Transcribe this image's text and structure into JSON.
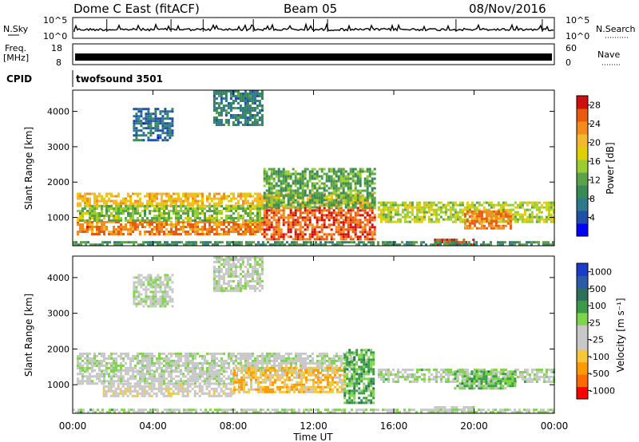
{
  "header": {
    "station": "Dome C East (fitACF)",
    "beam": "Beam 05",
    "date": "08/Nov/2016"
  },
  "top_panels": {
    "nsky_label": "N.Sky",
    "nsky_ticks_left": [
      "10^5",
      "10^0"
    ],
    "nsearch_label": "N.Search",
    "nsearch_ticks_right": [
      "10^5",
      "10^0"
    ],
    "freq_label_line1": "Freq.",
    "freq_label_line2": "[MHz]",
    "freq_ticks": [
      "18",
      "8"
    ],
    "nave_label": "Nave",
    "nave_ticks": [
      "60",
      "0"
    ],
    "cpid_label": "CPID",
    "cpid_value": "twofsound 3501"
  },
  "colors": {
    "power_scale": [
      "#0000ff",
      "#1f4fa6",
      "#2e7a8a",
      "#3a8a55",
      "#5aa34a",
      "#9acd32",
      "#e0d000",
      "#f7b733",
      "#f28c1e",
      "#e85a10",
      "#d01010"
    ],
    "velocity_scale": [
      "#ff0000",
      "#ff6a00",
      "#ff9a00",
      "#f7c63a",
      "#c8c8c8",
      "#c8c8c8",
      "#7ed44a",
      "#3a9a4a",
      "#2e6f5a",
      "#2a5aa8",
      "#1a3cc8"
    ]
  },
  "chart_data": [
    {
      "type": "heatmap",
      "quantity": "power",
      "ylabel": "Slant Range [km]",
      "xlabel": "",
      "ylim": [
        200,
        4600
      ],
      "yticks": [
        "1000",
        "2000",
        "3000",
        "4000"
      ],
      "xticks": [
        "00:00",
        "04:00",
        "08:00",
        "12:00",
        "16:00",
        "20:00",
        "00:00"
      ],
      "colorbar_label": "Power [dB]",
      "colorbar_ticks": [
        "4",
        "8",
        "12",
        "16",
        "20",
        "24",
        "28"
      ],
      "color_range": [
        0,
        30
      ],
      "regions": [
        {
          "t0": 0.2,
          "t1": 15.0,
          "r0": 1350,
          "r1": 1700,
          "value": 20
        },
        {
          "t0": 0.2,
          "t1": 9.5,
          "r0": 500,
          "r1": 900,
          "value": 24
        },
        {
          "t0": 0.2,
          "t1": 9.5,
          "r0": 900,
          "r1": 1350,
          "value": 14
        },
        {
          "t0": 9.5,
          "t1": 15.0,
          "r0": 400,
          "r1": 1300,
          "value": 26
        },
        {
          "t0": 9.5,
          "t1": 15.0,
          "r0": 1300,
          "r1": 2400,
          "value": 12
        },
        {
          "t0": 15.2,
          "t1": 24.0,
          "r0": 850,
          "r1": 1450,
          "value": 16
        },
        {
          "t0": 19.5,
          "t1": 21.8,
          "r0": 700,
          "r1": 1200,
          "value": 24
        },
        {
          "t0": 18.0,
          "t1": 20.0,
          "r0": 200,
          "r1": 400,
          "value": 28
        },
        {
          "t0": 7.0,
          "t1": 9.5,
          "r0": 3600,
          "r1": 4600,
          "value": 8
        },
        {
          "t0": 3.0,
          "t1": 5.0,
          "r0": 3200,
          "r1": 4100,
          "value": 6
        },
        {
          "t0": 0.0,
          "t1": 24.0,
          "r0": 200,
          "r1": 330,
          "value": 10
        }
      ]
    },
    {
      "type": "heatmap",
      "quantity": "velocity",
      "ylabel": "Slant Range [km]",
      "xlabel": "Time UT",
      "ylim": [
        200,
        4600
      ],
      "yticks": [
        "1000",
        "2000",
        "3000",
        "4000"
      ],
      "xticks": [
        "00:00",
        "04:00",
        "08:00",
        "12:00",
        "16:00",
        "20:00",
        "00:00"
      ],
      "colorbar_label": "Velocity [m s⁻¹]",
      "colorbar_ticks": [
        "1000",
        "500",
        "100",
        "25",
        "-25",
        "-100",
        "-500",
        "-1000"
      ],
      "color_range": [
        -1000,
        1000
      ],
      "regions": [
        {
          "t0": 0.2,
          "t1": 14.0,
          "r0": 1400,
          "r1": 1900,
          "value": 0
        },
        {
          "t0": 1.5,
          "t1": 8.0,
          "r0": 700,
          "r1": 1050,
          "value": -150
        },
        {
          "t0": 0.2,
          "t1": 8.0,
          "r0": 1050,
          "r1": 1400,
          "value": -40
        },
        {
          "t0": 8.0,
          "t1": 13.5,
          "r0": 800,
          "r1": 1500,
          "value": -400
        },
        {
          "t0": 13.5,
          "t1": 15.0,
          "r0": 500,
          "r1": 2000,
          "value": 300
        },
        {
          "t0": 15.2,
          "t1": 24.0,
          "r0": 1050,
          "r1": 1450,
          "value": 60
        },
        {
          "t0": 19.0,
          "t1": 22.0,
          "r0": 900,
          "r1": 1400,
          "value": 250
        },
        {
          "t0": 18.0,
          "t1": 20.0,
          "r0": 200,
          "r1": 400,
          "value": 0
        },
        {
          "t0": 7.0,
          "t1": 9.5,
          "r0": 3600,
          "r1": 4600,
          "value": 0
        },
        {
          "t0": 3.0,
          "t1": 5.0,
          "r0": 3200,
          "r1": 4100,
          "value": 0
        },
        {
          "t0": 0.0,
          "t1": 24.0,
          "r0": 200,
          "r1": 330,
          "value": 60
        }
      ]
    }
  ]
}
